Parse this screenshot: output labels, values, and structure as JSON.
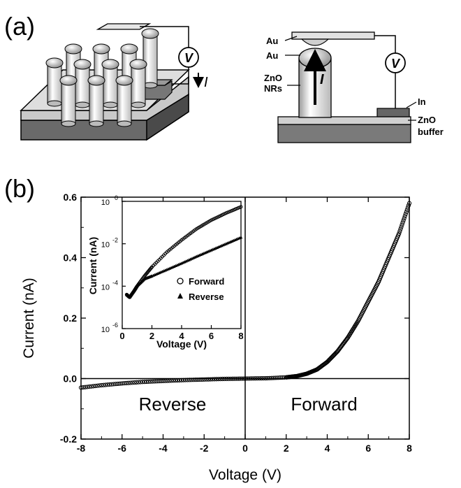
{
  "panel_a": {
    "label": "(a)",
    "left_schematic": {
      "meter_symbol": "V",
      "current_symbol": "I"
    },
    "right_schematic": {
      "labels": [
        "Au",
        "Au",
        "ZnO",
        "NRs",
        "In",
        "ZnO",
        "buffer"
      ],
      "meter_symbol": "V",
      "current_symbol": "I"
    }
  },
  "panel_b": {
    "label": "(b)"
  },
  "chart_data": [
    {
      "type": "scatter",
      "title": "",
      "xlabel": "Voltage (V)",
      "ylabel": "Current (nA)",
      "xlim": [
        -8,
        8
      ],
      "ylim": [
        -0.2,
        0.6
      ],
      "xticks": [
        "-8",
        "-6",
        "-4",
        "-2",
        "0",
        "2",
        "4",
        "6",
        "8"
      ],
      "yticks": [
        "-0.2",
        "0.0",
        "0.2",
        "0.4",
        "0.6"
      ],
      "region_labels": [
        "Reverse",
        "Forward"
      ],
      "series": [
        {
          "name": "",
          "x": [
            -8.0,
            -7.0,
            -6.0,
            -5.0,
            -4.0,
            -3.0,
            -2.0,
            -1.0,
            0.0,
            1.0,
            2.0,
            2.5,
            3.0,
            3.5,
            4.0,
            4.5,
            5.0,
            5.5,
            6.0,
            6.5,
            7.0,
            7.5,
            8.0
          ],
          "y": [
            -0.03,
            -0.022,
            -0.016,
            -0.011,
            -0.008,
            -0.005,
            -0.003,
            -0.001,
            0.0,
            0.001,
            0.004,
            0.008,
            0.016,
            0.03,
            0.055,
            0.09,
            0.135,
            0.19,
            0.255,
            0.32,
            0.4,
            0.48,
            0.58
          ]
        }
      ]
    },
    {
      "type": "scatter",
      "title": "",
      "xlabel": "Voltage (V)",
      "ylabel": "Current (nA)",
      "xlim": [
        0,
        8
      ],
      "ylim": [
        1e-06,
        1
      ],
      "yscale": "log",
      "xticks": [
        "0",
        "2",
        "4",
        "6",
        "8"
      ],
      "yticks": [
        "10-6",
        "10-4",
        "10-2",
        "100"
      ],
      "legend": {
        "position": "right",
        "entries": [
          "Forward",
          "Reverse"
        ]
      },
      "series": [
        {
          "name": "Forward",
          "x": [
            0.3,
            0.5,
            0.8,
            1.0,
            1.5,
            2.0,
            3.0,
            4.0,
            5.0,
            6.0,
            7.0,
            8.0
          ],
          "y": [
            4e-05,
            3e-05,
            6e-05,
            0.0001,
            0.0003,
            0.0008,
            0.004,
            0.015,
            0.05,
            0.13,
            0.28,
            0.55
          ]
        },
        {
          "name": "Reverse",
          "x": [
            0.3,
            0.5,
            0.8,
            1.0,
            1.5,
            2.0,
            3.0,
            4.0,
            5.0,
            6.0,
            7.0,
            8.0
          ],
          "y": [
            4e-05,
            3e-05,
            6e-05,
            0.0001,
            0.00022,
            0.0003,
            0.0006,
            0.0012,
            0.0025,
            0.005,
            0.01,
            0.02
          ]
        }
      ]
    }
  ]
}
